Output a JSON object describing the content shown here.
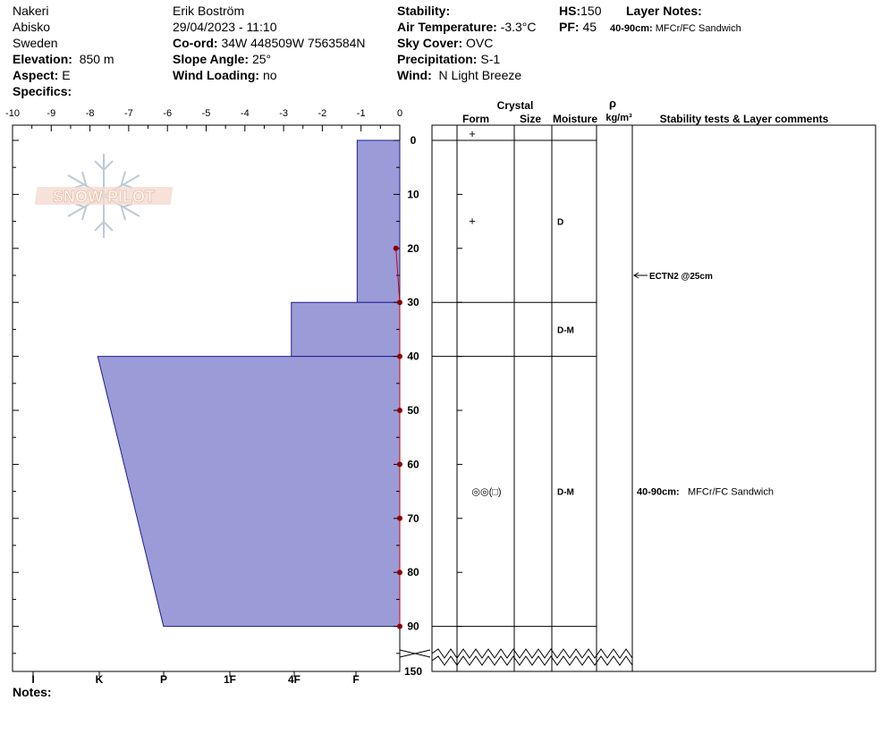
{
  "header": {
    "location": "Nakeri",
    "area": "Abisko",
    "country": "Sweden",
    "elevation_label": "Elevation:",
    "elevation": "850 m",
    "aspect_label": "Aspect:",
    "aspect": "E",
    "specifics_label": "Specifics:",
    "observer": "Erik Boström",
    "datetime": "29/04/2023 - 11:10",
    "coord_label": "Co-ord:",
    "coord": "34W 448509W 7563584N",
    "slope_label": "Slope Angle:",
    "slope": "25°",
    "wind_loading_label": "Wind Loading:",
    "wind_loading": "no",
    "stability_label": "Stability:",
    "air_temp_label": "Air Temperature:",
    "air_temp": "-3.3°C",
    "sky_label": "Sky Cover:",
    "sky": "OVC",
    "precip_label": "Precipitation:",
    "precip": "S-1",
    "wind_label": "Wind:",
    "wind": "N Light Breeze",
    "hs_label": "HS:",
    "hs": "150",
    "pf_label": "PF:",
    "pf": "45",
    "layer_notes_label": "Layer Notes:",
    "layer_note_depth": "40-90cm:",
    "layer_note_text": "MFCr/FC Sandwich"
  },
  "logo_text": "SNOW PILOT",
  "notes_label": "Notes:",
  "table": {
    "crystal_label": "Crystal",
    "form_label": "Form",
    "size_label": "Size",
    "moisture_label": "Moisture",
    "rho_label": "ρ",
    "density_unit": "kg/m³",
    "stability_label": "Stability tests & Layer comments",
    "rows": [
      {
        "top": 0,
        "bottom": 30,
        "form": "+",
        "moisture": "D"
      },
      {
        "top": 30,
        "bottom": 40,
        "form": "",
        "moisture": "D-M"
      },
      {
        "top": 40,
        "bottom": 90,
        "form": "◎◎(□)",
        "moisture": "D-M"
      }
    ],
    "top_marker": "+",
    "test": {
      "depth": 25,
      "label": "ECTN2 @25cm"
    },
    "comment": {
      "depth": 65,
      "depth_label": "40-90cm:",
      "text": "MFCr/FC Sandwich"
    }
  },
  "chart_data": {
    "type": "area",
    "title": "",
    "colors": {
      "hardness_fill": "#9b9bd7",
      "temperature": "#cc0000"
    },
    "temperature_axis": {
      "ticks": [
        "-10",
        "-9",
        "-8",
        "-7",
        "-6",
        "-5",
        "-4",
        "-3",
        "-2",
        "-1",
        "0"
      ],
      "range": [
        -10,
        0
      ]
    },
    "depth_axis": {
      "ticks": [
        "0",
        "10",
        "20",
        "30",
        "40",
        "50",
        "60",
        "70",
        "80",
        "90",
        "150"
      ],
      "break_above": 150
    },
    "hardness_axis": {
      "labels": [
        "I",
        "K",
        "P",
        "1F",
        "4F",
        "F"
      ]
    },
    "hardness_layers": [
      {
        "top": 0,
        "bottom": 30,
        "hardness_top": 1.1,
        "hardness_bottom": 1.1
      },
      {
        "top": 30,
        "bottom": 40,
        "hardness_top": 2.8,
        "hardness_bottom": 2.8
      },
      {
        "top": 40,
        "bottom": 90,
        "hardness_top": 7.8,
        "hardness_bottom": 6.1
      }
    ],
    "temperature_profile": [
      {
        "depth": 20,
        "temp": -0.1
      },
      {
        "depth": 30,
        "temp": 0
      },
      {
        "depth": 40,
        "temp": 0
      },
      {
        "depth": 50,
        "temp": 0
      },
      {
        "depth": 60,
        "temp": 0
      },
      {
        "depth": 70,
        "temp": 0
      },
      {
        "depth": 80,
        "temp": 0
      },
      {
        "depth": 90,
        "temp": 0
      }
    ]
  }
}
